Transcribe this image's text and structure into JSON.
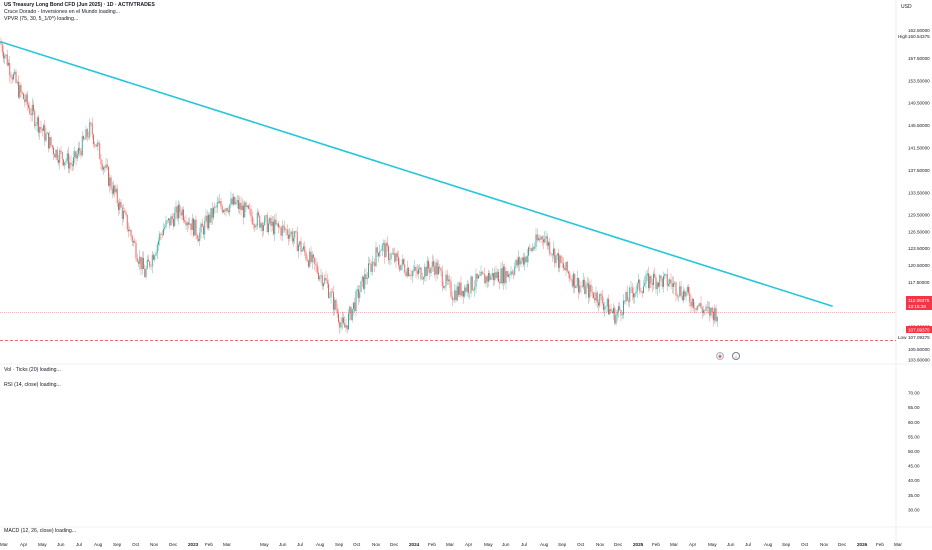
{
  "legend": {
    "title": "US Treasury Long Bond CFD (Jun 2025) · 1D · ACTIVTRADES",
    "line2": "Cruce Dorado - Inversiones en el Mundo  loading...",
    "line3": "VPVR (75, 30, 5_1/0^) loading...",
    "vol": "Vol · Ticks (20) loading...",
    "rsi": "RSI (14, close) loading...",
    "macd": "MACD (12, 26, close) loading..."
  },
  "price_axis": {
    "currency": "USD",
    "labels": [
      "162.50000",
      "157.50000",
      "153.50000",
      "149.50000",
      "145.50000",
      "141.50000",
      "137.50000",
      "133.50000",
      "129.50000",
      "126.50000",
      "123.50000",
      "120.50000",
      "117.50000",
      "114.50000",
      "109.50000",
      "105.50000",
      "103.60000"
    ],
    "high_label": "High",
    "high_value": "160.54375",
    "low_label": "Low",
    "low_value": "107.09375",
    "current_price": "112.09375",
    "countdown": "13:15:38",
    "dashed_level": "107.09375"
  },
  "rsi_axis": {
    "labels": [
      "70.00",
      "65.00",
      "60.00",
      "55.00",
      "50.00",
      "45.00",
      "40.00",
      "35.00",
      "30.00"
    ]
  },
  "time_axis": {
    "labels": [
      "Mar",
      "Apr",
      "May",
      "Jun",
      "Jul",
      "Aug",
      "Sep",
      "Oct",
      "Nov",
      "Dec",
      "2023",
      "Feb",
      "Mar",
      "May",
      "Jun",
      "Jul",
      "Aug",
      "Sep",
      "Oct",
      "Nov",
      "Dec",
      "2024",
      "Feb",
      "Mar",
      "Apr",
      "May",
      "Jun",
      "Jul",
      "Aug",
      "Sep",
      "Oct",
      "Nov",
      "Dec",
      "2025",
      "Feb",
      "Mar",
      "Apr",
      "May",
      "Jun",
      "Jul",
      "Aug",
      "Sep",
      "Oct",
      "Nov",
      "Dec",
      "2026",
      "Feb",
      "Mar"
    ]
  },
  "chart_data": {
    "type": "candlestick",
    "symbol": "US Treasury Long Bond CFD (Jun 2025)",
    "interval": "1D",
    "ylim": [
      103.6,
      164
    ],
    "trendline": {
      "start": [
        "2022-03",
        160.5
      ],
      "end": [
        "2026-02",
        113.2
      ],
      "color": "#26c6da"
    },
    "horizontal_level": {
      "value": 107.09,
      "style": "dashed",
      "color": "#f23645"
    },
    "current_price_line": {
      "value": 112.09,
      "color": "#f23645"
    },
    "close_path": [
      [
        "2022-03",
        160.5
      ],
      [
        "2022-04",
        152.0
      ],
      [
        "2022-05",
        146.5
      ],
      [
        "2022-06",
        141.0
      ],
      [
        "2022-07",
        138.5
      ],
      [
        "2022-08",
        145.0
      ],
      [
        "2022-09",
        136.0
      ],
      [
        "2022-10",
        128.0
      ],
      [
        "2022-11",
        119.0
      ],
      [
        "2022-12",
        127.0
      ],
      [
        "2023-01",
        130.5
      ],
      [
        "2023-02",
        126.0
      ],
      [
        "2023-03",
        131.0
      ],
      [
        "2023-04",
        131.5
      ],
      [
        "2023-05",
        129.0
      ],
      [
        "2023-06",
        127.5
      ],
      [
        "2023-07",
        126.5
      ],
      [
        "2023-08",
        122.0
      ],
      [
        "2023-09",
        117.5
      ],
      [
        "2023-10",
        109.0
      ],
      [
        "2023-11",
        117.0
      ],
      [
        "2023-12",
        124.0
      ],
      [
        "2024-01",
        121.0
      ],
      [
        "2024-02",
        119.0
      ],
      [
        "2024-03",
        120.5
      ],
      [
        "2024-04",
        115.5
      ],
      [
        "2024-05",
        117.0
      ],
      [
        "2024-06",
        118.5
      ],
      [
        "2024-07",
        119.0
      ],
      [
        "2024-08",
        122.0
      ],
      [
        "2024-09",
        126.0
      ],
      [
        "2024-10",
        120.5
      ],
      [
        "2024-11",
        117.0
      ],
      [
        "2024-12",
        115.0
      ],
      [
        "2025-01",
        111.5
      ],
      [
        "2025-02",
        116.0
      ],
      [
        "2025-03",
        118.0
      ],
      [
        "2025-04",
        117.5
      ],
      [
        "2025-05",
        115.0
      ],
      [
        "2025-06",
        112.1
      ]
    ],
    "colors": {
      "up": "#26a69a",
      "down": "#ef5350"
    }
  }
}
